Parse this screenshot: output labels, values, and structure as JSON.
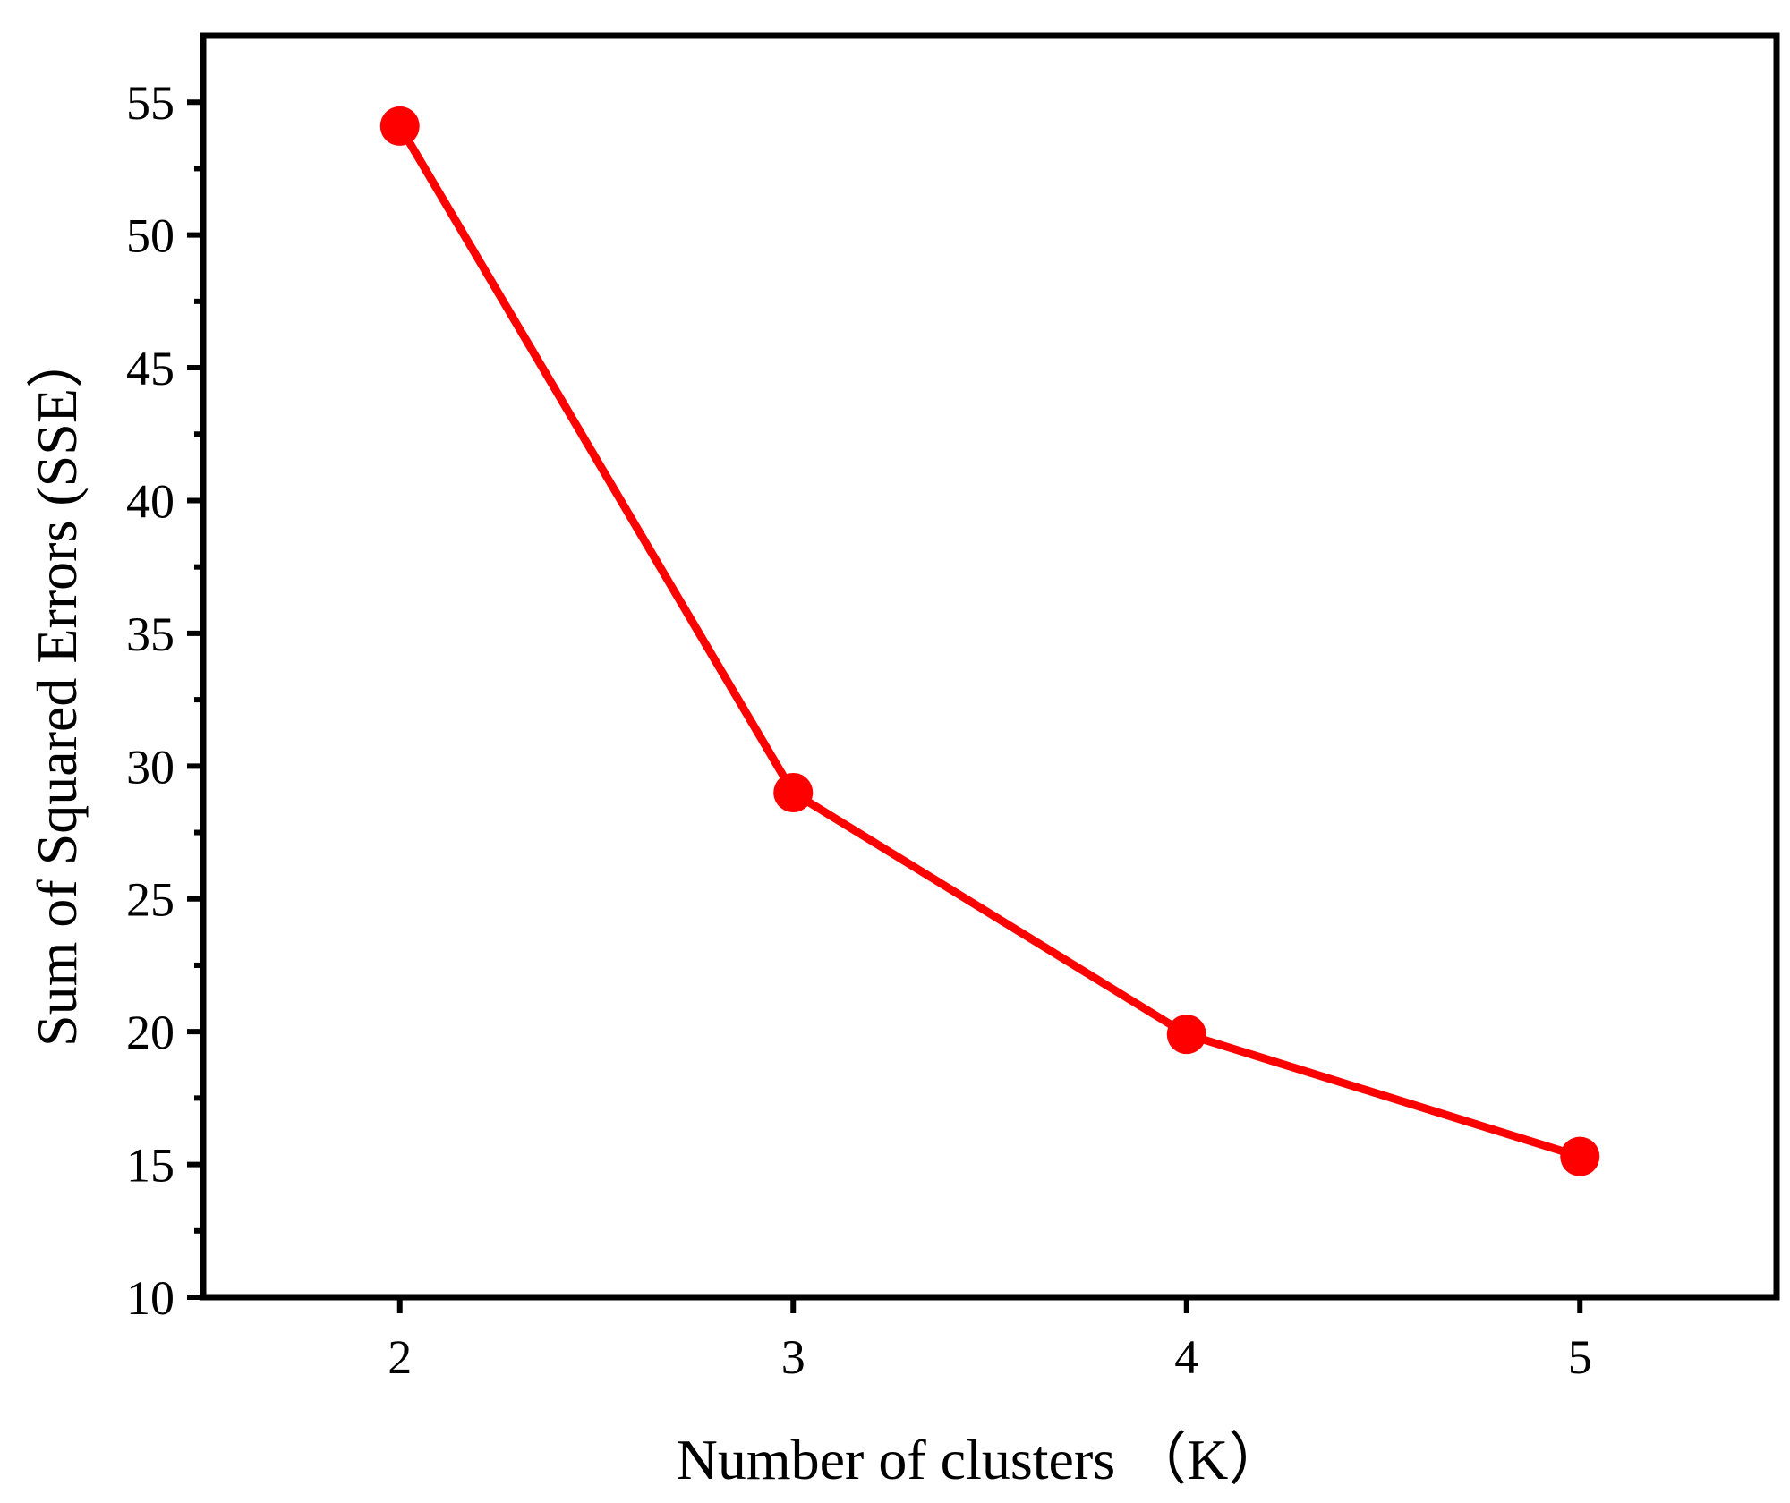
{
  "chart_data": {
    "type": "line",
    "title": "",
    "xlabel": "Number of clusters （K）",
    "ylabel": "Sum of Squared Errors (SSE）",
    "x": [
      2,
      3,
      4,
      5
    ],
    "series": [
      {
        "values": [
          54.1,
          29.0,
          19.9,
          15.3
        ]
      }
    ],
    "xlim": [
      1.5,
      5.5
    ],
    "ylim": [
      10,
      57.5
    ],
    "xticks": [
      2,
      3,
      4,
      5
    ],
    "xtick_labels": [
      "2",
      "3",
      "4",
      "5"
    ],
    "yticks": [
      10,
      15,
      20,
      25,
      30,
      35,
      40,
      45,
      50,
      55
    ],
    "ytick_labels": [
      "10",
      "15",
      "20",
      "25",
      "30",
      "35",
      "40",
      "45",
      "50",
      "55"
    ],
    "yminor_step": 2.5,
    "grid": false,
    "legend": "none",
    "colors": {
      "line": "#ff0000",
      "marker": "#ff0000",
      "axis": "#000000"
    }
  }
}
